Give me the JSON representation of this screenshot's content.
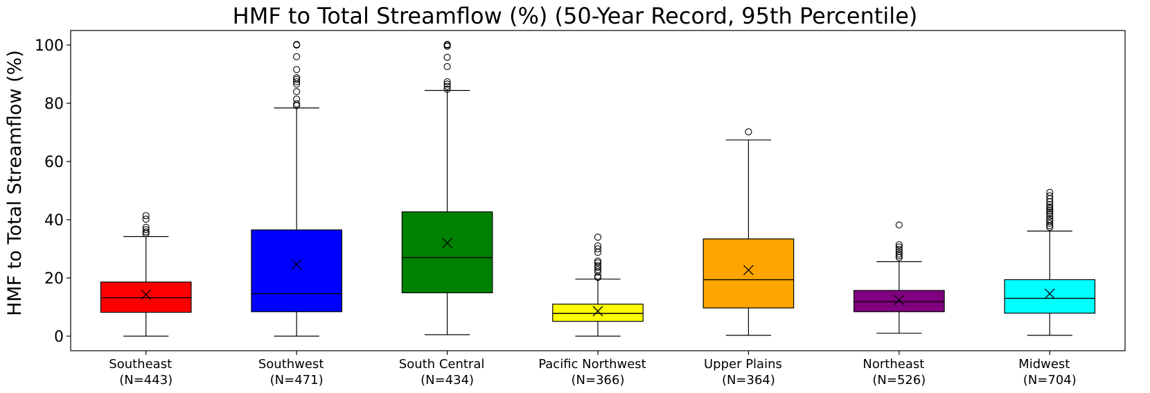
{
  "chart_data": {
    "type": "box",
    "title": "HMF to Total Streamflow (%) (50-Year Record, 95th Percentile)",
    "xlabel": "",
    "ylabel": "HMF to Total Streamflow (%)",
    "ylim": [
      -5,
      105
    ],
    "yticks": [
      "0",
      "20",
      "40",
      "60",
      "80",
      "100"
    ],
    "grid": false,
    "categories": [
      [
        "Southeast",
        "(N=443)"
      ],
      [
        "Southwest",
        "(N=471)"
      ],
      [
        "South Central",
        "(N=434)"
      ],
      [
        "Pacific Northwest",
        "(N=366)"
      ],
      [
        "Upper Plains",
        "(N=364)"
      ],
      [
        "Northeast",
        "(N=526)"
      ],
      [
        "Midwest",
        "(N=704)"
      ]
    ],
    "boxes": [
      {
        "color": "#ff0000",
        "whisker_low": 0,
        "q1": 8.2,
        "median": 13.2,
        "q3": 18.6,
        "whisker_high": 34.2,
        "mean": 14.3,
        "outliers": [
          35.2,
          35.8,
          36.6,
          37.4,
          40.2,
          41.4
        ]
      },
      {
        "color": "#0000ff",
        "whisker_low": 0,
        "q1": 8.4,
        "median": 14.6,
        "q3": 36.5,
        "whisker_high": 78.4,
        "mean": 24.6,
        "outliers": [
          79.2,
          79.8,
          81.4,
          84,
          86.6,
          87.4,
          88.2,
          88.8,
          91.6,
          96,
          100,
          100.2
        ]
      },
      {
        "color": "#008000",
        "whisker_low": 0.5,
        "q1": 14.9,
        "median": 27,
        "q3": 42.7,
        "whisker_high": 84.4,
        "mean": 32,
        "outliers": [
          84.8,
          85.8,
          86.6,
          87.4,
          92.6,
          95.8,
          99.6,
          100,
          100.2
        ]
      },
      {
        "color": "#ffff00",
        "whisker_low": 0,
        "q1": 5.1,
        "median": 7.8,
        "q3": 11,
        "whisker_high": 19.6,
        "mean": 8.6,
        "outliers": [
          20.2,
          20.6,
          22,
          22.8,
          23.6,
          24.2,
          25.2,
          25.8,
          28.8,
          30,
          31,
          34
        ]
      },
      {
        "color": "#ffa500",
        "whisker_low": 0.3,
        "q1": 9.7,
        "median": 19.4,
        "q3": 33.4,
        "whisker_high": 67.4,
        "mean": 22.7,
        "outliers": [
          70.2
        ]
      },
      {
        "color": "#800080",
        "whisker_low": 1,
        "q1": 8.4,
        "median": 11.8,
        "q3": 15.7,
        "whisker_high": 25.6,
        "mean": 12.4,
        "outliers": [
          27,
          27.6,
          28.2,
          29,
          29.8,
          30.6,
          31.4,
          38.2
        ]
      },
      {
        "color": "#00ffff",
        "whisker_low": 0.3,
        "q1": 7.9,
        "median": 13,
        "q3": 19.4,
        "whisker_high": 36.1,
        "mean": 14.6,
        "outliers": [
          37.4,
          38,
          38.8,
          39.6,
          40.2,
          41.2,
          42,
          42.6,
          43.2,
          43.8,
          44.4,
          45.2,
          46.2,
          47.2,
          48.2,
          49.4
        ]
      }
    ]
  }
}
